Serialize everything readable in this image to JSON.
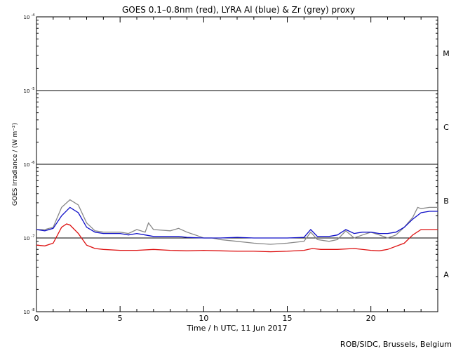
{
  "chart_data": {
    "type": "line",
    "title": "GOES 0.1–0.8nm (red), LYRA Al (blue) & Zr (grey) proxy",
    "xlabel": "Time / h UTC, 11 Jun 2017",
    "ylabel": "GOES Irradiance / (W m⁻²)",
    "credit": "ROB/SIDC, Brussels, Belgium",
    "xlim": [
      0,
      24
    ],
    "ylim": [
      1e-08,
      0.0001
    ],
    "yscale": "log",
    "x_ticks": [
      0,
      5,
      10,
      15,
      20
    ],
    "y_ticks": [
      {
        "value": 1e-08,
        "base": "10",
        "exp": "-8"
      },
      {
        "value": 1e-07,
        "base": "10",
        "exp": "-7"
      },
      {
        "value": 1e-06,
        "base": "10",
        "exp": "-6"
      },
      {
        "value": 1e-05,
        "base": "10",
        "exp": "-5"
      },
      {
        "value": 0.0001,
        "base": "10",
        "exp": "-4"
      }
    ],
    "threshold_lines": [
      1e-07,
      1e-06,
      1e-05
    ],
    "flare_classes": [
      {
        "label": "A",
        "value": 3.2e-08
      },
      {
        "label": "B",
        "value": 3.2e-07
      },
      {
        "label": "C",
        "value": 3.2e-06
      },
      {
        "label": "M",
        "value": 3.2e-05
      }
    ],
    "series": [
      {
        "color": "#888888",
        "points": [
          [
            0,
            1.3e-07
          ],
          [
            0.5,
            1.3e-07
          ],
          [
            1,
            1.4e-07
          ],
          [
            1.5,
            2.6e-07
          ],
          [
            2,
            3.3e-07
          ],
          [
            2.5,
            2.8e-07
          ],
          [
            3,
            1.6e-07
          ],
          [
            3.5,
            1.25e-07
          ],
          [
            4,
            1.2e-07
          ],
          [
            5,
            1.2e-07
          ],
          [
            5.5,
            1.15e-07
          ],
          [
            6,
            1.3e-07
          ],
          [
            6.5,
            1.2e-07
          ],
          [
            6.7,
            1.6e-07
          ],
          [
            7,
            1.3e-07
          ],
          [
            8,
            1.25e-07
          ],
          [
            8.5,
            1.35e-07
          ],
          [
            9,
            1.2e-07
          ],
          [
            9.5,
            1.1e-07
          ],
          [
            10,
            1e-07
          ],
          [
            10.5,
            1e-07
          ],
          [
            11,
            9.5e-08
          ],
          [
            12,
            9e-08
          ],
          [
            13,
            8.5e-08
          ],
          [
            14,
            8.2e-08
          ],
          [
            15,
            8.5e-08
          ],
          [
            16,
            9e-08
          ],
          [
            16.4,
            1.2e-07
          ],
          [
            16.8,
            9.5e-08
          ],
          [
            17.5,
            9e-08
          ],
          [
            18,
            9.5e-08
          ],
          [
            18.5,
            1.25e-07
          ],
          [
            19,
            1e-07
          ],
          [
            19.5,
            1.1e-07
          ],
          [
            20,
            1.2e-07
          ],
          [
            20.5,
            1.1e-07
          ],
          [
            21,
            1e-07
          ],
          [
            21.5,
            1.1e-07
          ],
          [
            22,
            1.4e-07
          ],
          [
            22.5,
            1.9e-07
          ],
          [
            22.8,
            2.6e-07
          ],
          [
            23,
            2.5e-07
          ],
          [
            23.5,
            2.6e-07
          ],
          [
            24,
            2.6e-07
          ]
        ]
      },
      {
        "color": "#1010c8",
        "points": [
          [
            0,
            1.3e-07
          ],
          [
            0.5,
            1.25e-07
          ],
          [
            1,
            1.35e-07
          ],
          [
            1.5,
            2e-07
          ],
          [
            2,
            2.6e-07
          ],
          [
            2.5,
            2.2e-07
          ],
          [
            3,
            1.4e-07
          ],
          [
            3.5,
            1.2e-07
          ],
          [
            4,
            1.15e-07
          ],
          [
            5,
            1.15e-07
          ],
          [
            5.5,
            1.1e-07
          ],
          [
            6,
            1.15e-07
          ],
          [
            6.5,
            1.1e-07
          ],
          [
            7,
            1.05e-07
          ],
          [
            8,
            1.05e-07
          ],
          [
            8.5,
            1.05e-07
          ],
          [
            9,
            1.02e-07
          ],
          [
            10,
            1e-07
          ],
          [
            11,
            1e-07
          ],
          [
            12,
            1.02e-07
          ],
          [
            13,
            1e-07
          ],
          [
            14,
            1e-07
          ],
          [
            15,
            1e-07
          ],
          [
            16,
            1.02e-07
          ],
          [
            16.4,
            1.3e-07
          ],
          [
            16.8,
            1.05e-07
          ],
          [
            17.5,
            1.05e-07
          ],
          [
            18,
            1.1e-07
          ],
          [
            18.5,
            1.3e-07
          ],
          [
            19,
            1.15e-07
          ],
          [
            19.5,
            1.2e-07
          ],
          [
            20,
            1.2e-07
          ],
          [
            20.5,
            1.15e-07
          ],
          [
            21,
            1.15e-07
          ],
          [
            21.5,
            1.2e-07
          ],
          [
            22,
            1.4e-07
          ],
          [
            22.5,
            1.8e-07
          ],
          [
            23,
            2.2e-07
          ],
          [
            23.5,
            2.3e-07
          ],
          [
            24,
            2.3e-07
          ]
        ]
      },
      {
        "color": "#dd1010",
        "points": [
          [
            0,
            8e-08
          ],
          [
            0.5,
            7.8e-08
          ],
          [
            1,
            8.5e-08
          ],
          [
            1.5,
            1.4e-07
          ],
          [
            1.8,
            1.55e-07
          ],
          [
            2,
            1.5e-07
          ],
          [
            2.5,
            1.15e-07
          ],
          [
            3,
            8e-08
          ],
          [
            3.5,
            7.2e-08
          ],
          [
            4,
            7e-08
          ],
          [
            5,
            6.8e-08
          ],
          [
            6,
            6.8e-08
          ],
          [
            7,
            7e-08
          ],
          [
            8,
            6.8e-08
          ],
          [
            9,
            6.7e-08
          ],
          [
            10,
            6.8e-08
          ],
          [
            11,
            6.7e-08
          ],
          [
            12,
            6.6e-08
          ],
          [
            13,
            6.6e-08
          ],
          [
            14,
            6.5e-08
          ],
          [
            15,
            6.6e-08
          ],
          [
            16,
            6.8e-08
          ],
          [
            16.5,
            7.2e-08
          ],
          [
            17,
            7e-08
          ],
          [
            18,
            7e-08
          ],
          [
            19,
            7.2e-08
          ],
          [
            20,
            6.8e-08
          ],
          [
            20.5,
            6.7e-08
          ],
          [
            21,
            7e-08
          ],
          [
            22,
            8.5e-08
          ],
          [
            22.5,
            1.1e-07
          ],
          [
            23,
            1.3e-07
          ],
          [
            24,
            1.3e-07
          ]
        ]
      }
    ]
  }
}
